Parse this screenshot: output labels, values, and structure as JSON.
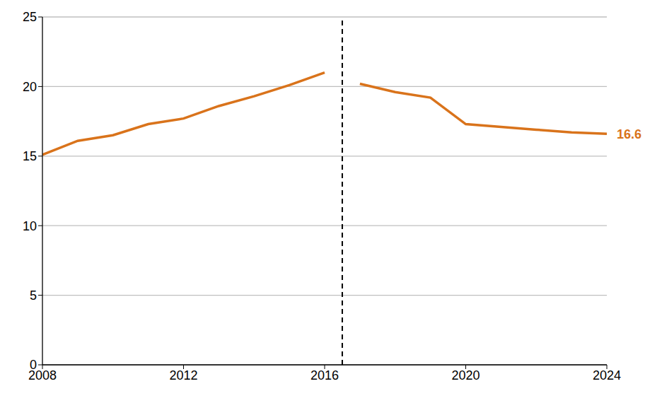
{
  "chart_data": {
    "type": "line",
    "x": [
      2008,
      2009,
      2010,
      2011,
      2012,
      2013,
      2014,
      2015,
      2016,
      2016.5,
      2017,
      2018,
      2019,
      2020,
      2021,
      2022,
      2023,
      2024
    ],
    "values": [
      15.1,
      16.1,
      16.5,
      17.3,
      17.7,
      18.6,
      19.3,
      20.1,
      21.0,
      null,
      20.2,
      19.6,
      19.2,
      17.3,
      17.1,
      16.9,
      16.7,
      16.6
    ],
    "color": "#d9731b",
    "xlim": [
      2008,
      2024
    ],
    "xticks": [
      2008,
      2012,
      2016,
      2020,
      2024
    ],
    "ylim": [
      0,
      25
    ],
    "yticks": [
      0,
      5,
      10,
      15,
      20,
      25
    ],
    "grid": true,
    "vlines": [
      2016.5
    ],
    "line_style": "solid",
    "annotations": [
      {
        "x": 2024,
        "y": 16.6,
        "text": "16.6"
      }
    ]
  }
}
